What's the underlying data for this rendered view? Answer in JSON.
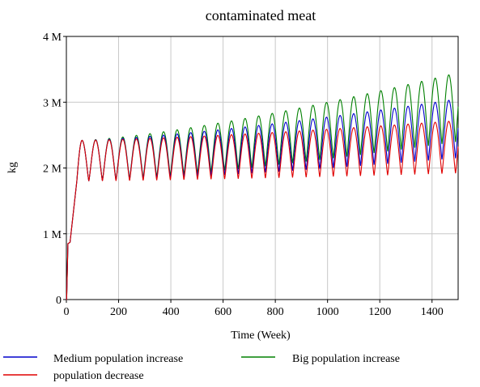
{
  "chart_data": {
    "type": "line",
    "title": "contaminated meat",
    "xlabel": "Time (Week)",
    "ylabel": "kg",
    "xlim": [
      0,
      1500
    ],
    "ylim": [
      0,
      4000000
    ],
    "x_ticks": [
      0,
      200,
      400,
      600,
      800,
      1000,
      1200,
      1400
    ],
    "x_tick_labels": [
      "0",
      "200",
      "400",
      "600",
      "800",
      "1000",
      "1200",
      "1400"
    ],
    "y_ticks": [
      0,
      1000000,
      2000000,
      3000000,
      4000000
    ],
    "y_tick_labels": [
      "0",
      "1 M",
      "2 M",
      "3 M",
      "4 M"
    ],
    "grid": true,
    "legend_placement": "bottom",
    "series": [
      {
        "name": "Medium population increase",
        "color": "#0000cc",
        "shape": {
          "start_peak": 2420000,
          "end_peak": 3050000,
          "start_trough": 1800000,
          "end_trough": 2150000,
          "period_weeks": 52
        }
      },
      {
        "name": "Big population increase",
        "color": "#008000",
        "shape": {
          "start_peak": 2420000,
          "end_peak": 3450000,
          "start_trough": 1800000,
          "end_trough": 2400000,
          "period_weeks": 52
        }
      },
      {
        "name": "population decrease",
        "color": "#e00000",
        "shape": {
          "start_peak": 2420000,
          "end_peak": 2720000,
          "start_trough": 1800000,
          "end_trough": 1920000,
          "period_weeks": 52
        }
      }
    ]
  }
}
